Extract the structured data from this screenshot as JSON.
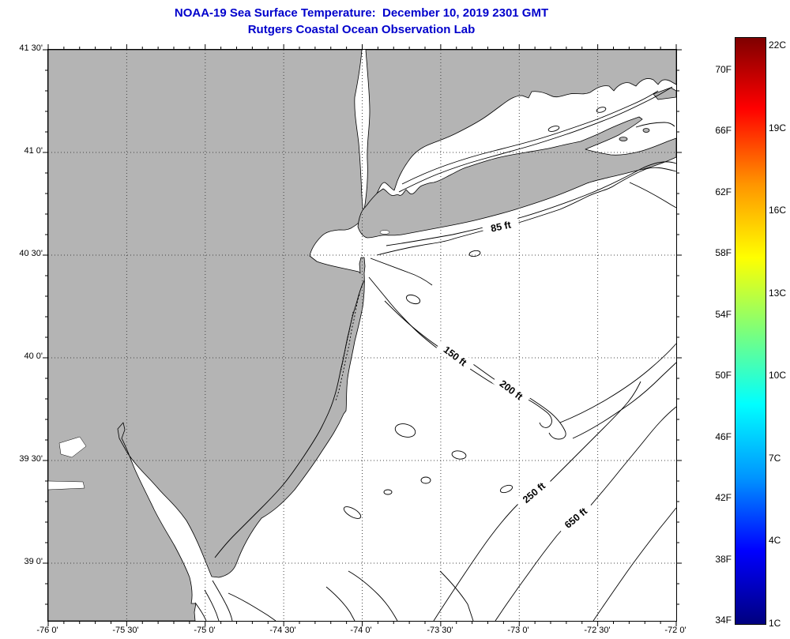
{
  "title": {
    "line1": "NOAA-19 Sea Surface Temperature:  December 10, 2019 2301 GMT",
    "line2": "Rutgers Coastal Ocean Observation Lab"
  },
  "axes": {
    "y": [
      "41 30'",
      "41 0'",
      "40 30'",
      "40 0'",
      "39 30'",
      "39 0'"
    ],
    "x": [
      "-76 0'",
      "-75 30'",
      "-75 0'",
      "-74 30'",
      "-74 0'",
      "-73 30'",
      "-73 0'",
      "-72 30'",
      "-72 0'"
    ]
  },
  "map": {
    "depth_labels": [
      "85 ft",
      "150 ft",
      "200 ft",
      "250 ft",
      "650 ft"
    ],
    "land_color": "#b4b4b4",
    "ocean_color": "#ffffff"
  },
  "colorbar": {
    "fahrenheit": [
      "70F",
      "66F",
      "62F",
      "58F",
      "54F",
      "50F",
      "46F",
      "42F",
      "38F",
      "34F"
    ],
    "celsius": [
      "22C",
      "19C",
      "16C",
      "13C",
      "10C",
      "7C",
      "4C",
      "1C"
    ],
    "top_color": "#7f0000",
    "bottom_color": "#00007f"
  }
}
